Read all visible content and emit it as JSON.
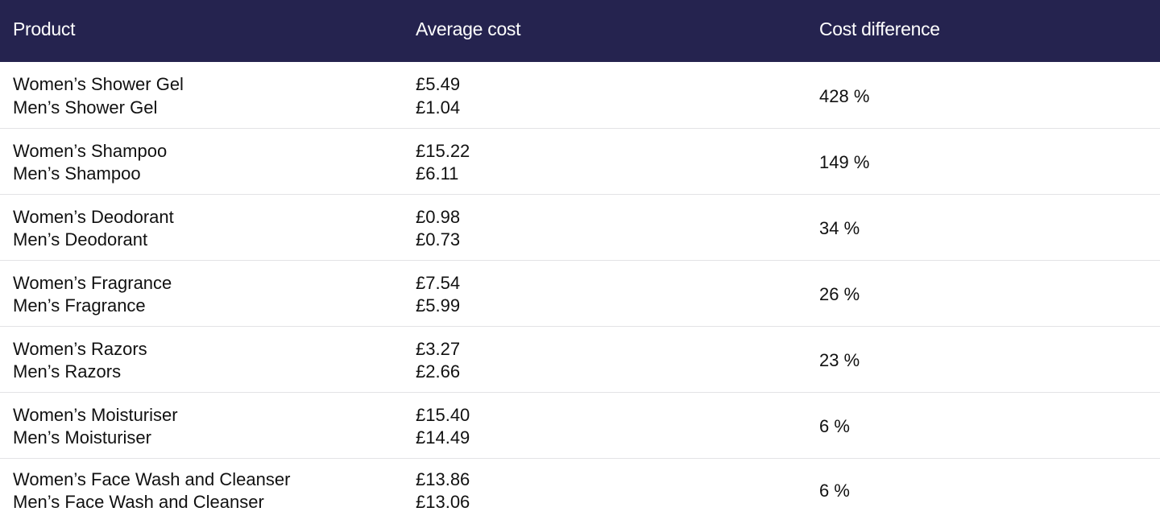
{
  "table": {
    "headers": [
      "Product",
      "Average cost",
      "Cost difference"
    ],
    "header_bg": "#25234f",
    "rows": [
      {
        "women_product": "Women’s Shower Gel",
        "men_product": "Men’s Shower Gel",
        "women_cost": "£5.49",
        "men_cost": "£1.04",
        "difference": "428 %"
      },
      {
        "women_product": "Women’s Shampoo",
        "men_product": "Men’s Shampoo",
        "women_cost": "£15.22",
        "men_cost": "£6.11",
        "difference": "149 %"
      },
      {
        "women_product": "Women’s Deodorant",
        "men_product": "Men’s Deodorant",
        "women_cost": "£0.98",
        "men_cost": "£0.73",
        "difference": "34 %"
      },
      {
        "women_product": "Women’s Fragrance",
        "men_product": "Men’s Fragrance",
        "women_cost": "£7.54",
        "men_cost": "£5.99",
        "difference": "26 %"
      },
      {
        "women_product": "Women’s Razors",
        "men_product": "Men’s Razors",
        "women_cost": "£3.27",
        "men_cost": "£2.66",
        "difference": "23 %"
      },
      {
        "women_product": "Women’s Moisturiser",
        "men_product": "Men’s Moisturiser",
        "women_cost": "£15.40",
        "men_cost": "£14.49",
        "difference": "6 %"
      },
      {
        "women_product": "Women’s Face Wash and Cleanser",
        "men_product": "Men’s Face Wash and Cleanser",
        "women_cost": "£13.86",
        "men_cost": "£13.06",
        "difference": "6 %"
      }
    ]
  }
}
